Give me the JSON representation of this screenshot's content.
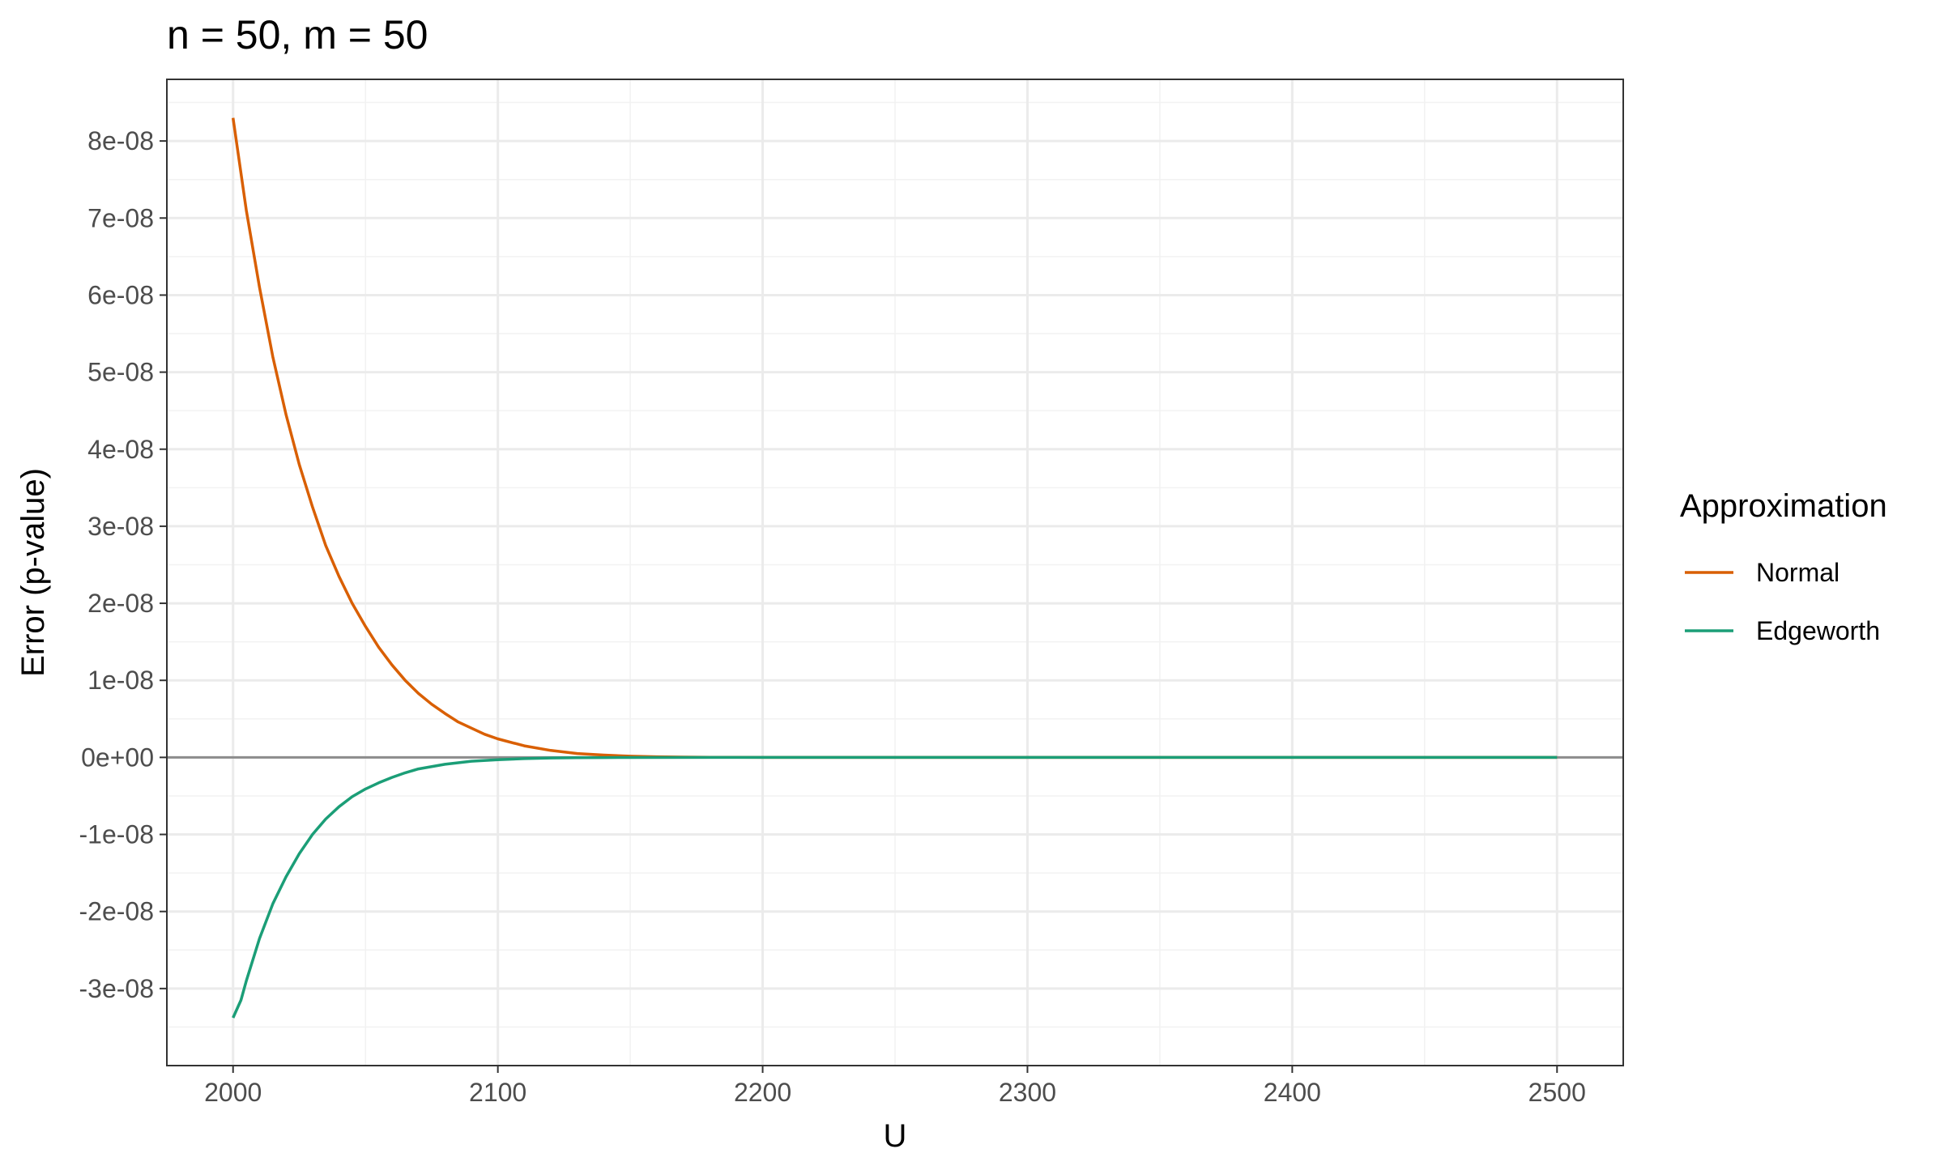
{
  "chart_data": {
    "type": "line",
    "title": "n = 50, m = 50",
    "xlabel": "U",
    "ylabel": "Error (p-value)",
    "xlim": [
      1975,
      2525
    ],
    "ylim": [
      -4e-08,
      8.8e-08
    ],
    "x_ticks": [
      2000,
      2100,
      2200,
      2300,
      2400,
      2500
    ],
    "x_tick_labels": [
      "2000",
      "2100",
      "2200",
      "2300",
      "2400",
      "2500"
    ],
    "y_ticks": [
      -3e-08,
      -2e-08,
      -1e-08,
      0,
      1e-08,
      2e-08,
      3e-08,
      4e-08,
      5e-08,
      6e-08,
      7e-08,
      8e-08
    ],
    "y_tick_labels": [
      "-3e-08",
      "-2e-08",
      "-1e-08",
      "0e+00",
      "1e-08",
      "2e-08",
      "3e-08",
      "4e-08",
      "5e-08",
      "6e-08",
      "7e-08",
      "8e-08"
    ],
    "grid": true,
    "reference_line_y": 0,
    "legend": {
      "title": "Approximation",
      "position": "right",
      "entries": [
        "Normal",
        "Edgeworth"
      ]
    },
    "series": [
      {
        "name": "Normal",
        "color": "#D95F02",
        "x": [
          2000,
          2005,
          2010,
          2015,
          2020,
          2025,
          2030,
          2035,
          2040,
          2045,
          2050,
          2055,
          2060,
          2065,
          2070,
          2075,
          2080,
          2085,
          2090,
          2095,
          2100,
          2110,
          2120,
          2130,
          2140,
          2150,
          2160,
          2170,
          2180,
          2190,
          2200,
          2250,
          2300,
          2350,
          2400,
          2450,
          2500
        ],
        "y": [
          8.3e-08,
          7.1e-08,
          6.1e-08,
          5.2e-08,
          4.45e-08,
          3.8e-08,
          3.25e-08,
          2.75e-08,
          2.35e-08,
          2e-08,
          1.7e-08,
          1.43e-08,
          1.2e-08,
          1e-08,
          8.3e-09,
          6.9e-09,
          5.7e-09,
          4.6e-09,
          3.8e-09,
          3e-09,
          2.4e-09,
          1.5e-09,
          9e-10,
          5e-10,
          3e-10,
          1.5e-10,
          8e-11,
          4e-11,
          2e-11,
          1e-11,
          0,
          0,
          0,
          0,
          0,
          0,
          0
        ]
      },
      {
        "name": "Edgeworth",
        "color": "#1B9E77",
        "x": [
          2000,
          2003,
          2005,
          2010,
          2015,
          2020,
          2025,
          2030,
          2035,
          2040,
          2045,
          2050,
          2055,
          2060,
          2065,
          2070,
          2080,
          2090,
          2100,
          2110,
          2120,
          2130,
          2140,
          2150,
          2200,
          2250,
          2300,
          2350,
          2400,
          2450,
          2500
        ],
        "y": [
          -3.38e-08,
          -3.15e-08,
          -2.9e-08,
          -2.35e-08,
          -1.9e-08,
          -1.55e-08,
          -1.25e-08,
          -1e-08,
          -8e-09,
          -6.4e-09,
          -5.1e-09,
          -4.1e-09,
          -3.3e-09,
          -2.6e-09,
          -2e-09,
          -1.5e-09,
          -9e-10,
          -5e-10,
          -3e-10,
          -1.6e-10,
          -8e-11,
          -4e-11,
          -2e-11,
          -1e-11,
          0,
          0,
          0,
          0,
          0,
          0,
          0
        ]
      }
    ]
  }
}
